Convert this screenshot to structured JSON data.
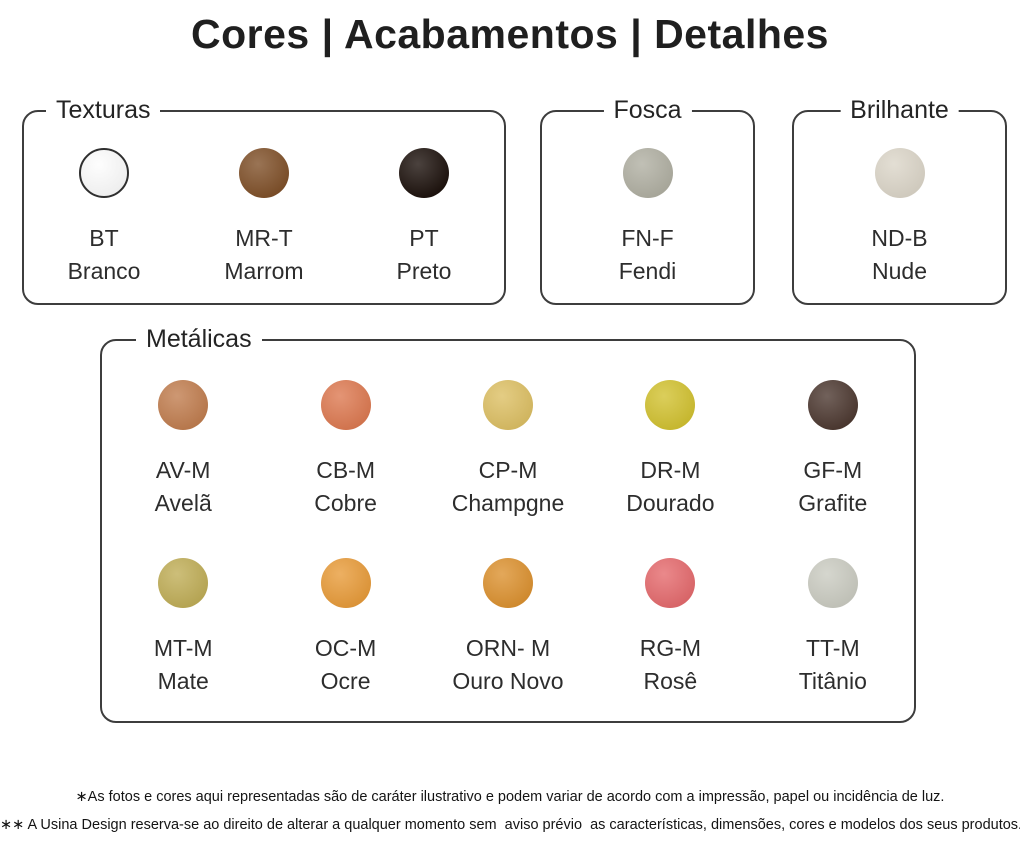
{
  "title": "Cores | Acabamentos | Detalhes",
  "panels": {
    "texturas": {
      "label": "Texturas",
      "swatches": [
        {
          "code": "BT",
          "name": "Branco",
          "color": "#fdfdfd",
          "border": "#2f2f2f"
        },
        {
          "code": "MR-T",
          "name": "Marrom",
          "color": "#80512a"
        },
        {
          "code": "PT",
          "name": "Preto",
          "color": "#1e130e"
        }
      ]
    },
    "fosca": {
      "label": "Fosca",
      "swatches": [
        {
          "code": "FN-F",
          "name": "Fendi",
          "color": "#b1b0a3"
        }
      ]
    },
    "brilhante": {
      "label": "Brilhante",
      "swatches": [
        {
          "code": "ND-B",
          "name": "Nude",
          "color": "#dcd6c9"
        }
      ]
    },
    "metalicas": {
      "label": "Metálicas",
      "rows": [
        [
          {
            "code": "AV-M",
            "name": "Avelã",
            "color": "#c17e50"
          },
          {
            "code": "CB-M",
            "name": "Cobre",
            "color": "#dd7a52"
          },
          {
            "code": "CP-M",
            "name": "Champgne",
            "color": "#ddc065"
          },
          {
            "code": "DR-M",
            "name": "Dourado",
            "color": "#d2c232"
          },
          {
            "code": "GF-M",
            "name": "Grafite",
            "color": "#4e3a32"
          }
        ],
        [
          {
            "code": "MT-M",
            "name": "Mate",
            "color": "#c0ae58"
          },
          {
            "code": "OC-M",
            "name": "Ocre",
            "color": "#e89c3b"
          },
          {
            "code": "ORN- M",
            "name": "Ouro Novo",
            "color": "#dc9231"
          },
          {
            "code": "RG-M",
            "name": "Rosê",
            "color": "#e56b6e"
          },
          {
            "code": "TT-M",
            "name": "Titânio",
            "color": "#cbccc2"
          }
        ]
      ]
    }
  },
  "footnotes": [
    "∗As fotos e cores aqui representadas são de caráter ilustrativo e podem variar de acordo com a impressão, papel ou incidência de luz.",
    "∗∗ A Usina Design reserva-se ao direito de alterar a qualquer momento sem  aviso prévio  as características, dimensões, cores e modelos dos seus produtos."
  ]
}
